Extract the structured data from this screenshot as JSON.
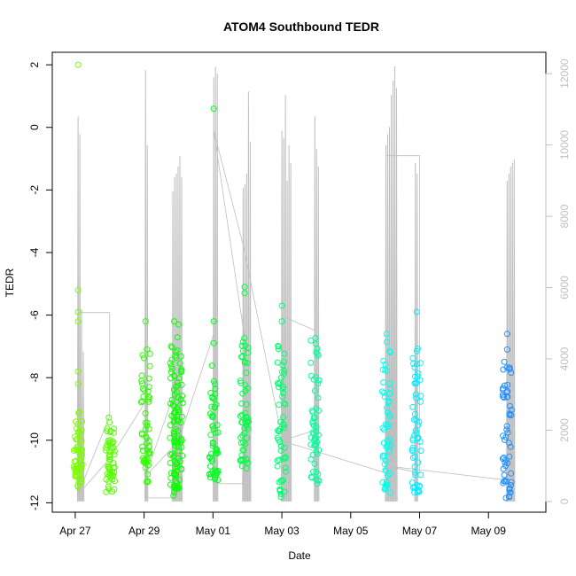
{
  "chart_data": {
    "type": "scatter",
    "title": "ATOM4 Southbound TEDR",
    "xlabel": "Date",
    "ylabel": "TEDR",
    "y2label": "",
    "xlim": [
      "2014-04-26T08:00",
      "2014-05-10T16:00"
    ],
    "ylim": [
      -12.3,
      2.4
    ],
    "y2lim": [
      -300,
      12600
    ],
    "x_ticks": [
      {
        "date": "2014-04-27",
        "label": "Apr 27"
      },
      {
        "date": "2014-04-29",
        "label": "Apr 29"
      },
      {
        "date": "2014-05-01",
        "label": "May 01"
      },
      {
        "date": "2014-05-03",
        "label": "May 03"
      },
      {
        "date": "2014-05-05",
        "label": "May 05"
      },
      {
        "date": "2014-05-07",
        "label": "May 07"
      },
      {
        "date": "2014-05-09",
        "label": "May 09"
      }
    ],
    "y_ticks": [
      {
        "value": 2,
        "label": "2"
      },
      {
        "value": 0,
        "label": "0"
      },
      {
        "value": -2,
        "label": "-2"
      },
      {
        "value": -4,
        "label": "-4"
      },
      {
        "value": -6,
        "label": "-6"
      },
      {
        "value": -8,
        "label": "-8"
      },
      {
        "value": -10,
        "label": "-10"
      },
      {
        "value": -12,
        "label": "-12"
      }
    ],
    "y2_ticks": [
      {
        "value": 0,
        "label": "0"
      },
      {
        "value": 2000,
        "label": "2000"
      },
      {
        "value": 4000,
        "label": "4000"
      },
      {
        "value": 6000,
        "label": "6000"
      },
      {
        "value": 8000,
        "label": "8000"
      },
      {
        "value": 10000,
        "label": "10000"
      },
      {
        "value": 12000,
        "label": "12000"
      }
    ],
    "grid": false,
    "legend": "none",
    "colors": {
      "altitude_line": "#bebebe",
      "axis": "#000000",
      "right_axis": "#c0c0c0",
      "point_gradient": [
        "#7cfc00",
        "#00ff00",
        "#00ff7f",
        "#00ffff",
        "#1e90ff"
      ]
    },
    "tedr_clusters": [
      {
        "time": "2014-04-27T02:00",
        "y_min": -11.5,
        "y_max": -9.0,
        "outliers": [
          2.0,
          -5.2,
          -5.9,
          -6.2,
          -7.8,
          -8.2
        ]
      },
      {
        "time": "2014-04-28T00:30",
        "y_min": -11.7,
        "y_max": -9.2,
        "outliers": []
      },
      {
        "time": "2014-04-29T01:00",
        "y_min": -11.4,
        "y_max": -6.8,
        "outliers": [
          -6.2
        ]
      },
      {
        "time": "2014-04-29T21:00",
        "y_min": -11.8,
        "y_max": -6.8,
        "outliers": [
          -6.2
        ]
      },
      {
        "time": "2014-04-30T00:00",
        "y_min": -11.7,
        "y_max": -6.6,
        "outliers": [
          -6.3
        ]
      },
      {
        "time": "2014-05-01T00:30",
        "y_min": -11.3,
        "y_max": -7.5,
        "outliers": [
          0.6,
          -6.2,
          -6.9
        ]
      },
      {
        "time": "2014-05-01T22:00",
        "y_min": -11.0,
        "y_max": -6.7,
        "outliers": [
          -5.1,
          -5.3
        ]
      },
      {
        "time": "2014-05-03T00:00",
        "y_min": -11.9,
        "y_max": -6.8,
        "outliers": [
          -5.7,
          -6.2
        ]
      },
      {
        "time": "2014-05-03T23:00",
        "y_min": -11.4,
        "y_max": -6.6,
        "outliers": []
      },
      {
        "time": "2014-05-06T01:00",
        "y_min": -11.8,
        "y_max": -6.8,
        "outliers": [
          -6.6
        ]
      },
      {
        "time": "2014-05-06T22:00",
        "y_min": -11.8,
        "y_max": -6.8,
        "outliers": [
          -5.9
        ]
      },
      {
        "time": "2014-05-09T13:00",
        "y_min": -11.9,
        "y_max": -7.3,
        "outliers": [
          -6.6,
          -7.1
        ]
      }
    ],
    "altitude_profiles": [
      {
        "time": "2014-04-27T02:00",
        "peaks": [
          10800,
          10300,
          5400,
          4200
        ]
      },
      {
        "time": "2014-04-29T01:00",
        "peaks": [
          12100,
          10000
        ]
      },
      {
        "time": "2014-04-29T20:00",
        "peaks": [
          8700,
          9100,
          9200,
          9400,
          9700,
          9100
        ]
      },
      {
        "time": "2014-05-01T00:30",
        "peaks": [
          11900,
          12200,
          12000
        ]
      },
      {
        "time": "2014-05-01T21:00",
        "peaks": [
          8800,
          8900,
          9200,
          11500,
          10100
        ]
      },
      {
        "time": "2014-05-03T00:00",
        "peaks": [
          10400,
          10200,
          11400,
          9000,
          10000,
          9500
        ]
      },
      {
        "time": "2014-05-03T23:00",
        "peaks": [
          10800,
          9900,
          9400
        ]
      },
      {
        "time": "2014-05-06T00:30",
        "peaks": [
          10000,
          10300,
          10500,
          11400,
          11800,
          12200,
          11600
        ]
      },
      {
        "time": "2014-05-06T21:00",
        "peaks": [
          9500,
          9200
        ]
      },
      {
        "time": "2014-05-09T13:00",
        "peaks": [
          9000,
          9200,
          9400,
          9500,
          9600
        ]
      }
    ],
    "altitude_track": [
      [
        "2014-04-27T02:00",
        200
      ],
      [
        "2014-04-27T02:00",
        5300
      ],
      [
        "2014-04-28T00:00",
        5300
      ],
      [
        "2014-04-28T00:00",
        2400
      ],
      [
        "2014-04-27T02:00",
        200
      ],
      [
        "2014-04-28T00:00",
        1200
      ],
      [
        "2014-04-29T01:00",
        2800
      ],
      [
        "2014-04-29T01:00",
        1300
      ],
      [
        "2014-04-29T01:00",
        100
      ],
      [
        "2014-04-29T20:00",
        100
      ],
      [
        "2014-04-29T20:00",
        2800
      ],
      [
        "2014-04-29T23:00",
        3300
      ],
      [
        "2014-04-29T01:00",
        700
      ],
      [
        "2014-04-30T00:00",
        1700
      ],
      [
        "2014-05-01T00:30",
        4700
      ],
      [
        "2014-05-01T00:30",
        600
      ],
      [
        "2014-05-01T00:30",
        500
      ],
      [
        "2014-05-01T21:00",
        500
      ],
      [
        "2014-05-01T21:00",
        2800
      ],
      [
        "2014-05-01T22:00",
        4600
      ],
      [
        "2014-05-01T00:30",
        10400
      ],
      [
        "2014-05-01T21:00",
        7200
      ],
      [
        "2014-05-03T00:00",
        1800
      ],
      [
        "2014-05-03T00:00",
        5200
      ],
      [
        "2014-05-03T23:00",
        4800
      ],
      [
        "2014-05-03T23:00",
        2000
      ],
      [
        "2014-05-03T00:00",
        1700
      ],
      [
        "2014-05-06T00:30",
        800
      ],
      [
        "2014-05-06T00:30",
        9700
      ],
      [
        "2014-05-07T00:00",
        9700
      ],
      [
        "2014-05-07T00:00",
        800
      ],
      [
        "2014-05-06T00:30",
        1000
      ],
      [
        "2014-05-09T13:00",
        600
      ]
    ]
  }
}
